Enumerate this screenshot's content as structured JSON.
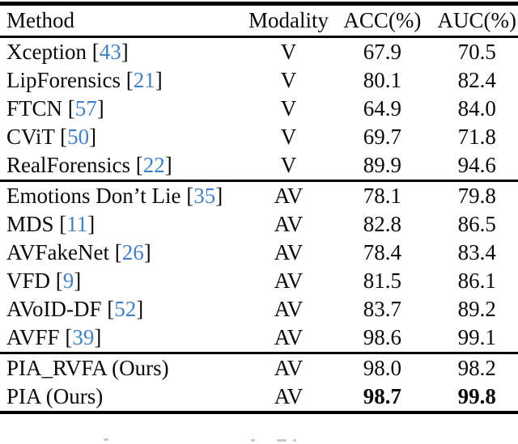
{
  "colors": {
    "citation": "#4180c5",
    "text": "#0a0a0a",
    "rule": "#000000"
  },
  "table": {
    "headers": {
      "method": "Method",
      "modality": "Modality",
      "acc": "ACC(%)",
      "auc": "AUC(%)"
    },
    "sections": [
      {
        "rows": [
          {
            "method": "Xception",
            "cite": "43",
            "modality": "V",
            "acc": "67.9",
            "auc": "70.5",
            "bold": false
          },
          {
            "method": "LipForensics",
            "cite": "21",
            "modality": "V",
            "acc": "80.1",
            "auc": "82.4",
            "bold": false
          },
          {
            "method": "FTCN",
            "cite": "57",
            "modality": "V",
            "acc": "64.9",
            "auc": "84.0",
            "bold": false
          },
          {
            "method": "CViT",
            "cite": "50",
            "modality": "V",
            "acc": "69.7",
            "auc": "71.8",
            "bold": false
          },
          {
            "method": "RealForensics",
            "cite": "22",
            "modality": "V",
            "acc": "89.9",
            "auc": "94.6",
            "bold": false
          }
        ]
      },
      {
        "rows": [
          {
            "method": "Emotions Don’t Lie",
            "cite": "35",
            "modality": "AV",
            "acc": "78.1",
            "auc": "79.8",
            "bold": false
          },
          {
            "method": "MDS",
            "cite": "11",
            "modality": "AV",
            "acc": "82.8",
            "auc": "86.5",
            "bold": false
          },
          {
            "method": "AVFakeNet",
            "cite": "26",
            "modality": "AV",
            "acc": "78.4",
            "auc": "83.4",
            "bold": false
          },
          {
            "method": "VFD",
            "cite": "9",
            "modality": "AV",
            "acc": "81.5",
            "auc": "86.1",
            "bold": false
          },
          {
            "method": "AVoID-DF",
            "cite": "52",
            "modality": "AV",
            "acc": "83.7",
            "auc": "89.2",
            "bold": false
          },
          {
            "method": "AVFF",
            "cite": "39",
            "modality": "AV",
            "acc": "98.6",
            "auc": "99.1",
            "bold": false
          }
        ]
      },
      {
        "rows": [
          {
            "method": "PIA_RVFA (Ours)",
            "cite": null,
            "modality": "AV",
            "acc": "98.0",
            "auc": "98.2",
            "bold": false
          },
          {
            "method": "PIA (Ours)",
            "cite": null,
            "modality": "AV",
            "acc": "98.7",
            "auc": "99.8",
            "bold": true
          }
        ]
      }
    ]
  }
}
